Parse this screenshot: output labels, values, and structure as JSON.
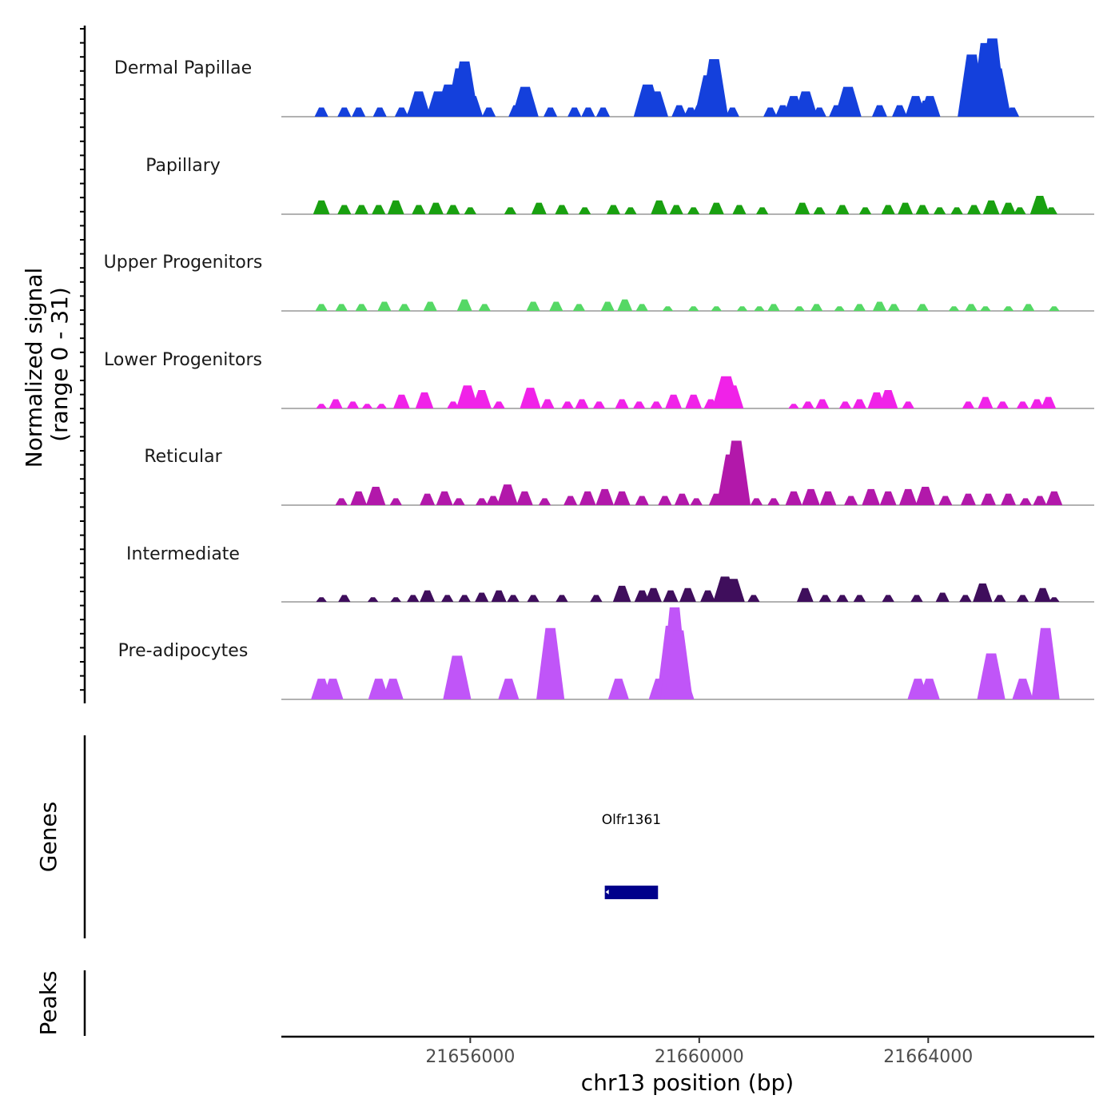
{
  "chart_data": {
    "type": "area",
    "chromosome": "chr13",
    "x_range": [
      21652700,
      21666900
    ],
    "xlabel": "chr13 position (bp)",
    "ylabel": "Normalized signal",
    "ylabel_range": "(range 0 - 31)",
    "y_range": [
      0,
      31
    ],
    "x_ticks": [
      {
        "value": 21656000,
        "label": "21656000"
      },
      {
        "value": 21660000,
        "label": "21660000"
      },
      {
        "value": 21664000,
        "label": "21664000"
      }
    ],
    "series": [
      {
        "name": "Dermal Papillae",
        "color": "#1440dc",
        "peaks": [
          [
            21653400,
            4
          ],
          [
            21653800,
            4
          ],
          [
            21654050,
            4
          ],
          [
            21654420,
            4
          ],
          [
            21654800,
            4
          ],
          [
            21655010,
            5
          ],
          [
            21655100,
            11
          ],
          [
            21655440,
            11
          ],
          [
            21655630,
            14
          ],
          [
            21655825,
            21
          ],
          [
            21655900,
            24
          ],
          [
            21656040,
            9
          ],
          [
            21656325,
            4
          ],
          [
            21656800,
            5
          ],
          [
            21656960,
            13
          ],
          [
            21657400,
            4
          ],
          [
            21657820,
            4
          ],
          [
            21658060,
            4
          ],
          [
            21658320,
            4
          ],
          [
            21659100,
            14
          ],
          [
            21659250,
            11
          ],
          [
            21659650,
            5
          ],
          [
            21659850,
            4
          ],
          [
            21660000,
            5
          ],
          [
            21660160,
            18
          ],
          [
            21660260,
            25
          ],
          [
            21660580,
            4
          ],
          [
            21661240,
            4
          ],
          [
            21661460,
            5
          ],
          [
            21661650,
            9
          ],
          [
            21661860,
            11
          ],
          [
            21662100,
            4
          ],
          [
            21662400,
            5
          ],
          [
            21662600,
            13
          ],
          [
            21663150,
            5
          ],
          [
            21663500,
            5
          ],
          [
            21663780,
            9
          ],
          [
            21663960,
            7
          ],
          [
            21664030,
            9
          ],
          [
            21664760,
            27
          ],
          [
            21665000,
            32
          ],
          [
            21665120,
            34
          ],
          [
            21665200,
            21
          ],
          [
            21665470,
            4
          ]
        ]
      },
      {
        "name": "Papillary",
        "color": "#19a010",
        "peaks": [
          [
            21653400,
            6
          ],
          [
            21653800,
            4
          ],
          [
            21654100,
            4
          ],
          [
            21654400,
            4
          ],
          [
            21654700,
            6
          ],
          [
            21655100,
            4
          ],
          [
            21655400,
            5
          ],
          [
            21655700,
            4
          ],
          [
            21656000,
            3
          ],
          [
            21656700,
            3
          ],
          [
            21657200,
            5
          ],
          [
            21657600,
            4
          ],
          [
            21658000,
            3
          ],
          [
            21658500,
            4
          ],
          [
            21658800,
            3
          ],
          [
            21659300,
            6
          ],
          [
            21659600,
            4
          ],
          [
            21659900,
            3
          ],
          [
            21660300,
            5
          ],
          [
            21660700,
            4
          ],
          [
            21661100,
            3
          ],
          [
            21661800,
            5
          ],
          [
            21662100,
            3
          ],
          [
            21662500,
            4
          ],
          [
            21662900,
            3
          ],
          [
            21663300,
            4
          ],
          [
            21663600,
            5
          ],
          [
            21663900,
            4
          ],
          [
            21664200,
            3
          ],
          [
            21664500,
            3
          ],
          [
            21664800,
            4
          ],
          [
            21665100,
            6
          ],
          [
            21665400,
            5
          ],
          [
            21665600,
            3
          ],
          [
            21665950,
            8
          ],
          [
            21666150,
            3
          ]
        ]
      },
      {
        "name": "Upper Progenitors",
        "color": "#55d865",
        "peaks": [
          [
            21653400,
            3
          ],
          [
            21653750,
            3
          ],
          [
            21654100,
            3
          ],
          [
            21654500,
            4
          ],
          [
            21654850,
            3
          ],
          [
            21655300,
            4
          ],
          [
            21655900,
            5
          ],
          [
            21656250,
            3
          ],
          [
            21657100,
            4
          ],
          [
            21657500,
            4
          ],
          [
            21657900,
            3
          ],
          [
            21658400,
            4
          ],
          [
            21658700,
            5
          ],
          [
            21659000,
            3
          ],
          [
            21659450,
            2
          ],
          [
            21659900,
            2
          ],
          [
            21660300,
            2
          ],
          [
            21660750,
            2
          ],
          [
            21661050,
            2
          ],
          [
            21661300,
            3
          ],
          [
            21661750,
            2
          ],
          [
            21662050,
            3
          ],
          [
            21662450,
            2
          ],
          [
            21662800,
            3
          ],
          [
            21663150,
            4
          ],
          [
            21663400,
            3
          ],
          [
            21663900,
            3
          ],
          [
            21664450,
            2
          ],
          [
            21664750,
            3
          ],
          [
            21665000,
            2
          ],
          [
            21665400,
            2
          ],
          [
            21665750,
            3
          ],
          [
            21666200,
            2
          ]
        ]
      },
      {
        "name": "Lower Progenitors",
        "color": "#f022e8",
        "peaks": [
          [
            21653400,
            2
          ],
          [
            21653650,
            4
          ],
          [
            21653950,
            3
          ],
          [
            21654200,
            2
          ],
          [
            21654450,
            2
          ],
          [
            21654800,
            6
          ],
          [
            21655200,
            7
          ],
          [
            21655700,
            3
          ],
          [
            21655950,
            10
          ],
          [
            21656200,
            8
          ],
          [
            21656500,
            3
          ],
          [
            21657050,
            9
          ],
          [
            21657350,
            4
          ],
          [
            21657700,
            3
          ],
          [
            21657950,
            4
          ],
          [
            21658250,
            3
          ],
          [
            21658650,
            4
          ],
          [
            21658950,
            3
          ],
          [
            21659250,
            3
          ],
          [
            21659550,
            6
          ],
          [
            21659900,
            6
          ],
          [
            21660200,
            4
          ],
          [
            21660470,
            14
          ],
          [
            21660580,
            10
          ],
          [
            21661650,
            2
          ],
          [
            21661900,
            3
          ],
          [
            21662150,
            4
          ],
          [
            21662550,
            3
          ],
          [
            21662800,
            4
          ],
          [
            21663100,
            7
          ],
          [
            21663300,
            8
          ],
          [
            21663650,
            3
          ],
          [
            21664700,
            3
          ],
          [
            21665000,
            5
          ],
          [
            21665300,
            3
          ],
          [
            21665650,
            3
          ],
          [
            21665900,
            4
          ],
          [
            21666100,
            5
          ]
        ]
      },
      {
        "name": "Reticular",
        "color": "#b218aa",
        "peaks": [
          [
            21653750,
            3
          ],
          [
            21654050,
            6
          ],
          [
            21654350,
            8
          ],
          [
            21654700,
            3
          ],
          [
            21655250,
            5
          ],
          [
            21655550,
            6
          ],
          [
            21655800,
            3
          ],
          [
            21656200,
            3
          ],
          [
            21656400,
            4
          ],
          [
            21656650,
            9
          ],
          [
            21656950,
            6
          ],
          [
            21657300,
            3
          ],
          [
            21657750,
            4
          ],
          [
            21658050,
            6
          ],
          [
            21658350,
            7
          ],
          [
            21658650,
            6
          ],
          [
            21659000,
            4
          ],
          [
            21659400,
            4
          ],
          [
            21659700,
            5
          ],
          [
            21659950,
            3
          ],
          [
            21660300,
            5
          ],
          [
            21660550,
            22
          ],
          [
            21660650,
            28
          ],
          [
            21661000,
            3
          ],
          [
            21661300,
            3
          ],
          [
            21661650,
            6
          ],
          [
            21661950,
            7
          ],
          [
            21662250,
            6
          ],
          [
            21662650,
            4
          ],
          [
            21663000,
            7
          ],
          [
            21663300,
            6
          ],
          [
            21663650,
            7
          ],
          [
            21663950,
            8
          ],
          [
            21664300,
            4
          ],
          [
            21664700,
            5
          ],
          [
            21665050,
            5
          ],
          [
            21665400,
            5
          ],
          [
            21665700,
            3
          ],
          [
            21665950,
            4
          ],
          [
            21666200,
            6
          ]
        ]
      },
      {
        "name": "Intermediate",
        "color": "#3f0e5c",
        "peaks": [
          [
            21653400,
            2
          ],
          [
            21653800,
            3
          ],
          [
            21654300,
            2
          ],
          [
            21654700,
            2
          ],
          [
            21655000,
            3
          ],
          [
            21655250,
            5
          ],
          [
            21655600,
            3
          ],
          [
            21655900,
            3
          ],
          [
            21656200,
            4
          ],
          [
            21656500,
            5
          ],
          [
            21656750,
            3
          ],
          [
            21657100,
            3
          ],
          [
            21657600,
            3
          ],
          [
            21658200,
            3
          ],
          [
            21658650,
            7
          ],
          [
            21659000,
            5
          ],
          [
            21659200,
            6
          ],
          [
            21659500,
            5
          ],
          [
            21659800,
            6
          ],
          [
            21660150,
            5
          ],
          [
            21660450,
            11
          ],
          [
            21660600,
            10
          ],
          [
            21660950,
            3
          ],
          [
            21661850,
            6
          ],
          [
            21662200,
            3
          ],
          [
            21662500,
            3
          ],
          [
            21662800,
            3
          ],
          [
            21663300,
            3
          ],
          [
            21663800,
            3
          ],
          [
            21664250,
            4
          ],
          [
            21664650,
            3
          ],
          [
            21664950,
            8
          ],
          [
            21665250,
            3
          ],
          [
            21665650,
            3
          ],
          [
            21666000,
            6
          ],
          [
            21666200,
            2
          ]
        ]
      },
      {
        "name": "Pre-adipocytes",
        "color": "#c055f8",
        "peaks": [
          [
            21653400,
            9
          ],
          [
            21653600,
            9
          ],
          [
            21654400,
            9
          ],
          [
            21654650,
            9
          ],
          [
            21655770,
            19
          ],
          [
            21656670,
            9
          ],
          [
            21657400,
            31
          ],
          [
            21658590,
            9
          ],
          [
            21659300,
            9
          ],
          [
            21659500,
            32
          ],
          [
            21659570,
            40
          ],
          [
            21659640,
            30
          ],
          [
            21659730,
            9
          ],
          [
            21663820,
            9
          ],
          [
            21664020,
            9
          ],
          [
            21665100,
            20
          ],
          [
            21665650,
            9
          ],
          [
            21666050,
            31
          ]
        ]
      }
    ],
    "genes": [
      {
        "name": "Olfr1361",
        "start": 21658350,
        "end": 21659280,
        "strand": "-",
        "color": "#00008b"
      }
    ],
    "panels": {
      "genes_title": "Genes",
      "peaks_title": "Peaks"
    }
  }
}
